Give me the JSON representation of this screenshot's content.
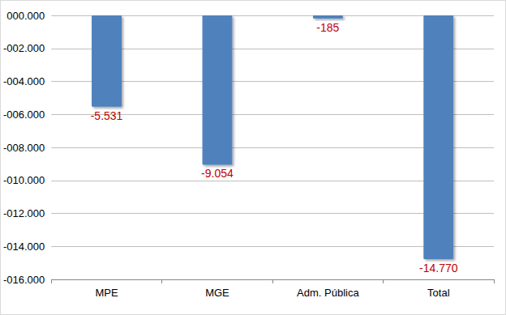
{
  "chart_data": {
    "type": "bar",
    "categories": [
      "MPE",
      "MGE",
      "Adm. Pública",
      "Total"
    ],
    "values": [
      -5531,
      -9054,
      -185,
      -14770
    ],
    "value_labels": [
      "-5.531",
      "-9.054",
      "-185",
      "-14.770"
    ],
    "color": "#4f81bd",
    "ylim": [
      -16000,
      0
    ],
    "yticks": [
      {
        "value": -16000,
        "label": "-016.000"
      },
      {
        "value": -14000,
        "label": "-014.000"
      },
      {
        "value": -12000,
        "label": "-012.000"
      },
      {
        "value": -10000,
        "label": "-010.000"
      },
      {
        "value": -8000,
        "label": "-008.000"
      },
      {
        "value": -6000,
        "label": "-006.000"
      },
      {
        "value": -4000,
        "label": "-004.000"
      },
      {
        "value": -2000,
        "label": "-002.000"
      },
      {
        "value": 0,
        "label": "000.000"
      }
    ],
    "grid": true,
    "data_labels": true
  }
}
